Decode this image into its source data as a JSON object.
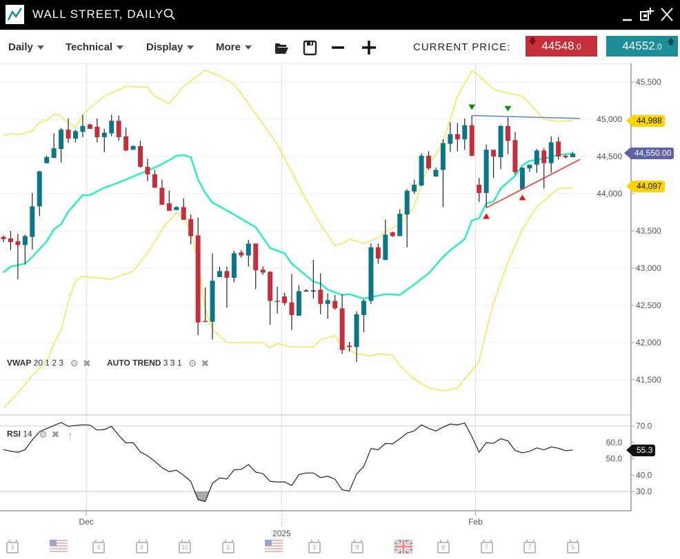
{
  "window": {
    "title": "WALL STREET, DAILY"
  },
  "toolbar": {
    "menus": [
      {
        "label": "Daily"
      },
      {
        "label": "Technical"
      },
      {
        "label": "Display"
      },
      {
        "label": "More"
      }
    ],
    "current_price_label": "CURRENT PRICE:",
    "sell": {
      "int": "44548",
      "dec": ".0",
      "color": "#c62f3a",
      "direction": "down"
    },
    "buy": {
      "int": "44552",
      "dec": ".0",
      "color": "#1a8d96",
      "direction": "up"
    }
  },
  "indicators": {
    "vwap": {
      "name": "VWAP",
      "params": "20 1 2 3"
    },
    "auto_trend": {
      "name": "AUTO TREND",
      "params": "3 3 1"
    },
    "rsi": {
      "name": "RSI",
      "params": "14"
    }
  },
  "price_tags": {
    "upper_band": {
      "label": "44,988",
      "color": "#ffd400"
    },
    "current": {
      "label": "44,550.00",
      "color": "#6062a8"
    },
    "lower_band": {
      "label": "44,097",
      "color": "#ffd400"
    },
    "rsi": {
      "label": "55.3",
      "color": "#111111"
    }
  },
  "chart_data": [
    {
      "type": "candlestick",
      "ylim": [
        41200,
        45750
      ],
      "y_ticks": [
        "45,500",
        "45,000",
        "44,500",
        "44,000",
        "43,500",
        "43,000",
        "42,500",
        "42,000",
        "41,500"
      ],
      "y_tick_values": [
        45500,
        45000,
        44500,
        44000,
        43500,
        43000,
        42500,
        42000,
        41500
      ],
      "x_labels": [
        {
          "label": "Dec",
          "index": 11.5
        },
        {
          "label": "2025",
          "index": 38.6
        },
        {
          "label": "Feb",
          "index": 65.5
        }
      ],
      "grid": true,
      "colors": {
        "up": "#0b7785",
        "down": "#c3303b",
        "vwap": "#27efc4",
        "bands": "#ffe033",
        "resistance": "#5a7fe0",
        "support": "#ff2a2a"
      },
      "candles_ohlc": [
        [
          43420,
          43440,
          43350,
          43390
        ],
        [
          43400,
          43500,
          43240,
          43350
        ],
        [
          43360,
          43460,
          42850,
          43310
        ],
        [
          43310,
          43450,
          43050,
          43430
        ],
        [
          43420,
          44010,
          43250,
          43830
        ],
        [
          43830,
          44310,
          43700,
          44300
        ],
        [
          44410,
          44510,
          44410,
          44490
        ],
        [
          44480,
          44810,
          44480,
          44610
        ],
        [
          44600,
          44880,
          44420,
          44860
        ],
        [
          44860,
          45010,
          44680,
          44740
        ],
        [
          44740,
          44860,
          44690,
          44840
        ],
        [
          44830,
          45060,
          44760,
          44910
        ],
        [
          44930,
          44940,
          44870,
          44870
        ],
        [
          44900,
          45010,
          44690,
          44760
        ],
        [
          44760,
          44870,
          44560,
          44820
        ],
        [
          44810,
          45060,
          44770,
          44980
        ],
        [
          44980,
          45050,
          44710,
          44760
        ],
        [
          44770,
          44890,
          44570,
          44580
        ],
        [
          44590,
          44650,
          44590,
          44640
        ],
        [
          44640,
          44710,
          44350,
          44360
        ],
        [
          44360,
          44470,
          44170,
          44260
        ],
        [
          44260,
          44320,
          44080,
          44080
        ],
        [
          44080,
          44190,
          43850,
          43850
        ],
        [
          43870,
          44040,
          43770,
          43770
        ],
        [
          43780,
          43830,
          43780,
          43820
        ],
        [
          43820,
          43940,
          43650,
          43650
        ],
        [
          43660,
          43720,
          43320,
          43430
        ],
        [
          43440,
          43680,
          42100,
          42270
        ],
        [
          42290,
          42740,
          42280,
          42280
        ],
        [
          42280,
          43200,
          42040,
          42830
        ],
        [
          42880,
          43020,
          42880,
          42960
        ],
        [
          42960,
          43020,
          42470,
          42870
        ],
        [
          42870,
          43230,
          42810,
          43200
        ],
        [
          43210,
          43240,
          43140,
          43170
        ],
        [
          43170,
          43380,
          43020,
          43330
        ],
        [
          43330,
          43330,
          42720,
          42970
        ],
        [
          42980,
          43020,
          42910,
          42940
        ],
        [
          42950,
          42960,
          42240,
          42560
        ],
        [
          42560,
          42750,
          42390,
          42550
        ],
        [
          42620,
          42670,
          42500,
          42530
        ],
        [
          42540,
          42920,
          42170,
          42370
        ],
        [
          42360,
          42770,
          42360,
          42690
        ],
        [
          42700,
          42720,
          42690,
          42700
        ],
        [
          42700,
          43110,
          42590,
          42700
        ],
        [
          42710,
          42930,
          42380,
          42520
        ],
        [
          42520,
          42660,
          42320,
          42570
        ],
        [
          42560,
          42640,
          42440,
          42460
        ],
        [
          42460,
          42650,
          41850,
          41900
        ],
        [
          41960,
          42010,
          41880,
          41940
        ],
        [
          41940,
          42420,
          41740,
          42380
        ],
        [
          42370,
          42580,
          42140,
          42560
        ],
        [
          42560,
          43330,
          42520,
          43280
        ],
        [
          43280,
          43330,
          43060,
          43130
        ],
        [
          43110,
          43650,
          43110,
          43450
        ],
        [
          43480,
          43490,
          43420,
          43430
        ],
        [
          43430,
          43790,
          43430,
          43730
        ],
        [
          43720,
          44060,
          43280,
          44040
        ],
        [
          44030,
          44190,
          44000,
          44120
        ],
        [
          44110,
          44540,
          44100,
          44510
        ],
        [
          44510,
          44570,
          44320,
          44340
        ],
        [
          44230,
          44350,
          44230,
          44320
        ],
        [
          44320,
          44730,
          43820,
          44680
        ],
        [
          44670,
          44960,
          44560,
          44800
        ],
        [
          44800,
          44950,
          44570,
          44730
        ],
        [
          44730,
          45010,
          44590,
          44920
        ],
        [
          44920,
          45050,
          44500,
          44510
        ],
        [
          44120,
          44210,
          43890,
          44010
        ],
        [
          44010,
          44660,
          43810,
          44590
        ],
        [
          44590,
          44590,
          44210,
          44500
        ],
        [
          44490,
          44920,
          44330,
          44910
        ],
        [
          44910,
          45030,
          44530,
          44710
        ],
        [
          44720,
          44830,
          44260,
          44290
        ],
        [
          44060,
          44350,
          44060,
          44350
        ],
        [
          44340,
          44390,
          44290,
          44390
        ],
        [
          44390,
          44600,
          44280,
          44580
        ],
        [
          44580,
          44610,
          44070,
          44410
        ],
        [
          44410,
          44770,
          44280,
          44690
        ],
        [
          44700,
          44760,
          44460,
          44500
        ],
        [
          44510,
          44520,
          44470,
          44490
        ],
        [
          44490,
          44560,
          44490,
          44540
        ]
      ],
      "vwap": [
        [
          0,
          42940
        ],
        [
          1,
          43020
        ],
        [
          3,
          43060
        ],
        [
          4,
          43150
        ],
        [
          6,
          43360
        ],
        [
          7,
          43520
        ],
        [
          8,
          43590
        ],
        [
          9,
          43760
        ],
        [
          11,
          43980
        ],
        [
          12,
          43980
        ],
        [
          14,
          44080
        ],
        [
          16,
          44150
        ],
        [
          17,
          44190
        ],
        [
          19,
          44270
        ],
        [
          21,
          44350
        ],
        [
          23,
          44450
        ],
        [
          24,
          44510
        ],
        [
          25,
          44520
        ],
        [
          26,
          44490
        ],
        [
          27,
          44190
        ],
        [
          28,
          44010
        ],
        [
          29,
          43880
        ],
        [
          30,
          43830
        ],
        [
          35,
          43550
        ],
        [
          37,
          43270
        ],
        [
          39,
          43200
        ],
        [
          40,
          43060
        ],
        [
          43,
          42820
        ],
        [
          44,
          42790
        ],
        [
          45,
          42710
        ],
        [
          47,
          42640
        ],
        [
          48,
          42650
        ],
        [
          50,
          42590
        ],
        [
          53,
          42650
        ],
        [
          55,
          42640
        ],
        [
          57,
          42780
        ],
        [
          59,
          42930
        ],
        [
          61,
          43150
        ],
        [
          62,
          43240
        ],
        [
          64,
          43390
        ],
        [
          65,
          43640
        ],
        [
          66,
          43670
        ],
        [
          67,
          43870
        ],
        [
          68,
          43890
        ],
        [
          69,
          44070
        ],
        [
          71,
          44240
        ],
        [
          72,
          44380
        ],
        [
          73,
          44440
        ],
        [
          75,
          44470
        ],
        [
          77,
          44520
        ],
        [
          79,
          44540
        ]
      ],
      "upper_band": [
        [
          0,
          44780
        ],
        [
          1,
          44810
        ],
        [
          2,
          44790
        ],
        [
          4,
          44840
        ],
        [
          5,
          44960
        ],
        [
          6,
          44980
        ],
        [
          7,
          45070
        ],
        [
          8,
          45040
        ],
        [
          9,
          44950
        ],
        [
          10,
          44890
        ],
        [
          11,
          45060
        ],
        [
          12,
          45150
        ],
        [
          14,
          45310
        ],
        [
          17,
          45440
        ],
        [
          20,
          45430
        ],
        [
          21,
          45310
        ],
        [
          23,
          45210
        ],
        [
          25,
          45440
        ],
        [
          28,
          45660
        ],
        [
          30,
          45580
        ],
        [
          32,
          45470
        ],
        [
          34,
          45210
        ],
        [
          36,
          44940
        ],
        [
          38,
          44660
        ],
        [
          40,
          44290
        ],
        [
          42,
          43920
        ],
        [
          44,
          43590
        ],
        [
          46,
          43300
        ],
        [
          47,
          43330
        ],
        [
          48,
          43390
        ],
        [
          50,
          43330
        ],
        [
          52,
          43410
        ],
        [
          53,
          43490
        ],
        [
          55,
          43590
        ],
        [
          57,
          43820
        ],
        [
          58,
          44130
        ],
        [
          59,
          44380
        ],
        [
          61,
          44690
        ],
        [
          62,
          45000
        ],
        [
          63,
          45310
        ],
        [
          65,
          45650
        ],
        [
          66,
          45580
        ],
        [
          68,
          45400
        ],
        [
          70,
          45350
        ],
        [
          72,
          45310
        ],
        [
          73,
          45210
        ],
        [
          75,
          45000
        ],
        [
          77,
          44970
        ],
        [
          79,
          44980
        ]
      ],
      "lower_band": [
        [
          0,
          41120
        ],
        [
          2,
          41320
        ],
        [
          4,
          41560
        ],
        [
          6,
          41740
        ],
        [
          7,
          41990
        ],
        [
          8,
          42160
        ],
        [
          9,
          42550
        ],
        [
          10,
          42830
        ],
        [
          11,
          42890
        ],
        [
          13,
          42870
        ],
        [
          15,
          42850
        ],
        [
          18,
          42960
        ],
        [
          20,
          43200
        ],
        [
          22,
          43520
        ],
        [
          24,
          43750
        ],
        [
          25,
          43670
        ],
        [
          26,
          43500
        ],
        [
          27,
          43060
        ],
        [
          28,
          42440
        ],
        [
          29,
          42180
        ],
        [
          31,
          42000
        ],
        [
          36,
          42000
        ],
        [
          37,
          41930
        ],
        [
          38,
          41990
        ],
        [
          40,
          41940
        ],
        [
          43,
          41940
        ],
        [
          44,
          42040
        ],
        [
          46,
          42090
        ],
        [
          47,
          41940
        ],
        [
          49,
          41850
        ],
        [
          51,
          41820
        ],
        [
          52,
          41850
        ],
        [
          54,
          41830
        ],
        [
          55,
          41690
        ],
        [
          57,
          41510
        ],
        [
          59,
          41390
        ],
        [
          61,
          41350
        ],
        [
          63,
          41390
        ],
        [
          64,
          41510
        ],
        [
          66,
          41740
        ],
        [
          67,
          42160
        ],
        [
          68,
          42530
        ],
        [
          70,
          43080
        ],
        [
          72,
          43520
        ],
        [
          74,
          43820
        ],
        [
          77,
          44070
        ],
        [
          79,
          44080
        ]
      ],
      "auto_trend": {
        "resistance": [
          [
            65,
            45050
          ],
          [
            80,
            45010
          ]
        ],
        "support": [
          [
            67,
            43810
          ],
          [
            80,
            44460
          ]
        ],
        "peaks": [
          65,
          70
        ],
        "troughs": [
          67,
          72
        ]
      }
    },
    {
      "type": "line",
      "name": "RSI 14",
      "ylim": [
        20,
        80
      ],
      "y_ticks": [
        "70.0",
        "60.0",
        "50.0",
        "40.0",
        "30.0"
      ],
      "y_tick_values": [
        70,
        60,
        50,
        40,
        30
      ],
      "levels": [
        70,
        30
      ],
      "values": [
        55.5,
        54.6,
        53.9,
        55.5,
        61.5,
        66.5,
        68.4,
        70.3,
        72.1,
        69.8,
        70.3,
        70.7,
        70.5,
        67.5,
        67.8,
        69.8,
        64.2,
        59.7,
        59.8,
        54.1,
        51.8,
        48.4,
        44.5,
        42.1,
        43.0,
        39.9,
        36.1,
        25.0,
        23.8,
        35.0,
        38.3,
        37.6,
        43.2,
        43.5,
        46.4,
        41.8,
        40.9,
        36.2,
        35.8,
        35.8,
        33.6,
        40.3,
        41.3,
        41.3,
        38.5,
        39.3,
        37.5,
        31.0,
        30.3,
        40.6,
        45.3,
        56.2,
        55.5,
        59.3,
        59.1,
        62.2,
        65.6,
        67.0,
        70.7,
        68.5,
        66.9,
        69.3,
        71.2,
        70.7,
        71.8,
        63.5,
        54.0,
        59.8,
        59.4,
        62.2,
        60.9,
        55.0,
        53.6,
        54.5,
        56.6,
        55.4,
        57.2,
        56.4,
        54.9,
        55.3
      ]
    }
  ],
  "events": [
    {
      "type": "calendar",
      "label": "4"
    },
    {
      "type": "flag-us",
      "label": ""
    },
    {
      "type": "calendar",
      "label": "4"
    },
    {
      "type": "calendar",
      "label": "4"
    },
    {
      "type": "calendar",
      "label": "10"
    },
    {
      "type": "calendar",
      "label": "2"
    },
    {
      "type": "flag-us",
      "label": ""
    },
    {
      "type": "calendar",
      "label": "3"
    },
    {
      "type": "calendar",
      "label": "9"
    },
    {
      "type": "flag-uk",
      "label": ""
    },
    {
      "type": "calendar",
      "label": "6"
    },
    {
      "type": "calendar",
      "label": "7"
    },
    {
      "type": "calendar",
      "label": "7"
    },
    {
      "type": "calendar",
      "label": "5"
    }
  ]
}
